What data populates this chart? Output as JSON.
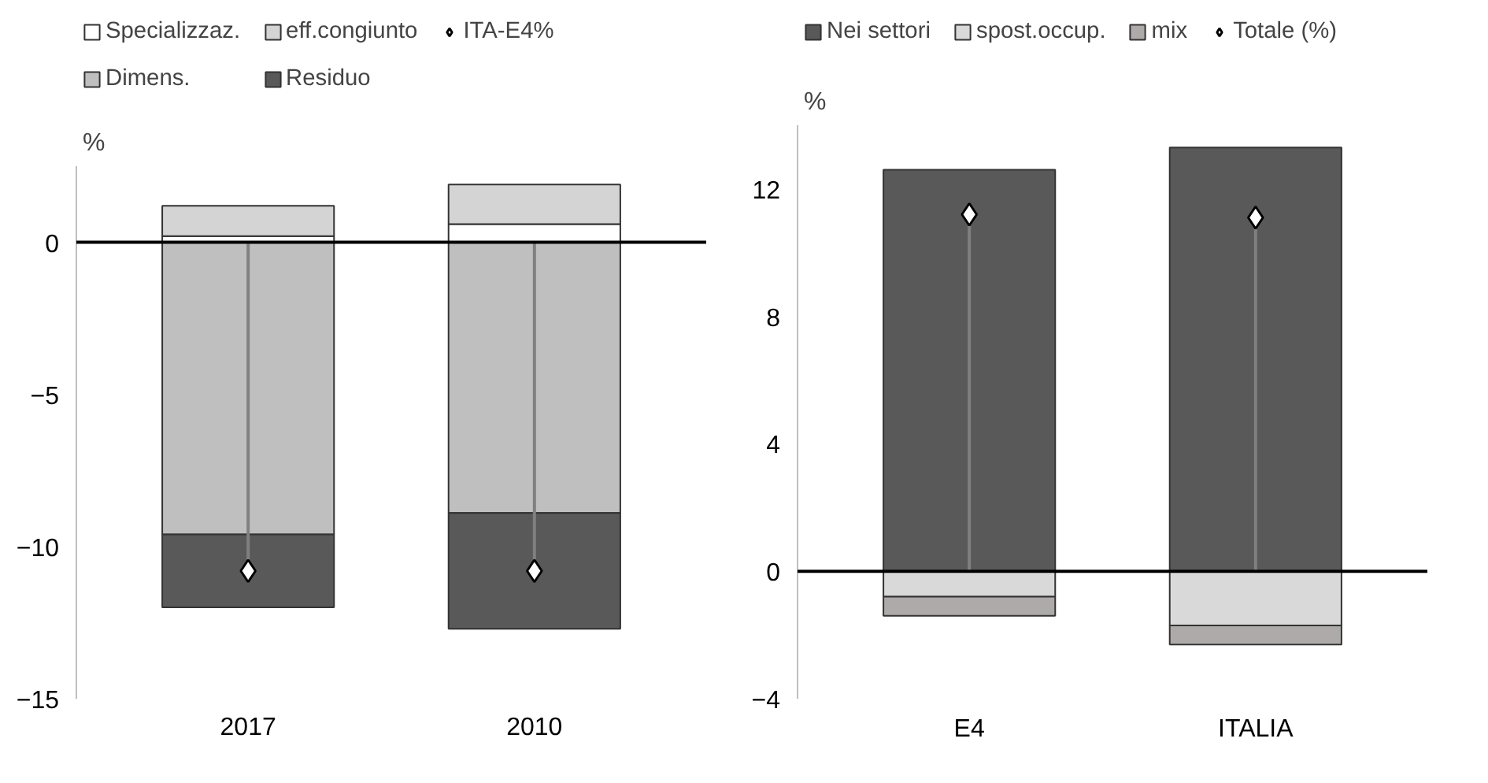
{
  "chart_data": [
    {
      "type": "bar",
      "stacked": true,
      "ylabel": "%",
      "categories": [
        "2017",
        "2010"
      ],
      "ylim": [
        -15,
        2.5
      ],
      "yticks": [
        -15,
        -10,
        -5,
        0
      ],
      "ref_lines": [
        {
          "axis": "y",
          "value": 0
        }
      ],
      "grid": false,
      "legend": "top",
      "marker": "diamond",
      "series": [
        {
          "name": "Specializzaz.",
          "color": "#ffffff",
          "values": [
            0.2,
            0.6
          ]
        },
        {
          "name": "Dimens.",
          "color": "#bfbfbf",
          "values": [
            -9.6,
            -8.9
          ]
        },
        {
          "name": "eff.congiunto",
          "color": "#d4d4d4",
          "values": [
            1.0,
            1.3
          ]
        },
        {
          "name": "Residuo",
          "color": "#595959",
          "values": [
            -2.4,
            -3.8
          ]
        },
        {
          "name": "ITA-E4%",
          "type": "lollipop",
          "color": "#ffffff",
          "values": [
            -10.8,
            -10.8
          ]
        }
      ]
    },
    {
      "type": "bar",
      "stacked": true,
      "ylabel": "%",
      "categories": [
        "E4",
        "ITALIA"
      ],
      "ylim": [
        -4,
        14
      ],
      "yticks": [
        -4,
        0,
        4,
        8,
        12
      ],
      "ref_lines": [
        {
          "axis": "y",
          "value": 0
        }
      ],
      "grid": false,
      "legend": "top",
      "marker": "diamond",
      "series": [
        {
          "name": "Nei settori",
          "color": "#595959",
          "values": [
            12.6,
            13.3
          ]
        },
        {
          "name": "spost.occup.",
          "color": "#d9d9d9",
          "values": [
            -0.8,
            -1.7
          ]
        },
        {
          "name": "mix",
          "color": "#aeaaaa",
          "values": [
            -0.6,
            -0.6
          ]
        },
        {
          "name": "Totale (%)",
          "type": "lollipop",
          "color": "#ffffff",
          "values": [
            11.2,
            11.1
          ]
        }
      ]
    }
  ]
}
